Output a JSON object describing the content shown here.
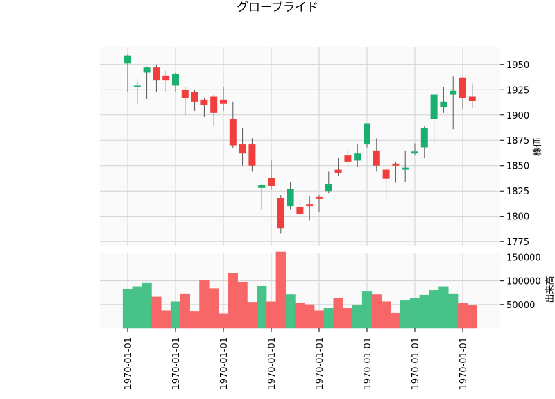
{
  "chart_data": {
    "type": "candlestick",
    "title": "グローブライド",
    "colors": {
      "up": "#1aae6f",
      "down": "#f23d3d",
      "up_volume": "#47c38a",
      "down_volume": "#f76767",
      "panel_bg": "#fafafa",
      "grid": "#d0d0d0"
    },
    "price_panel": {
      "ylabel": "株価",
      "ylim": [
        1771,
        1967
      ],
      "yticks": [
        1775,
        1800,
        1825,
        1850,
        1875,
        1900,
        1925,
        1950
      ],
      "ytick_labels": [
        "1775",
        "1800",
        "1825",
        "1850",
        "1875",
        "1900",
        "1925",
        "1950"
      ]
    },
    "volume_panel": {
      "ylabel": "出来高",
      "ylim": [
        0,
        158000
      ],
      "yticks": [
        50000,
        100000,
        150000
      ],
      "ytick_labels": [
        "50000",
        "100000",
        "150000"
      ]
    },
    "xtick_labels": [
      "1970-01-01",
      "1970-01-01",
      "1970-01-01",
      "1970-01-01",
      "1970-01-01",
      "1970-01-01",
      "1970-01-01",
      "1970-01-01"
    ],
    "candles": [
      {
        "o": 1951,
        "h": 1960,
        "l": 1923,
        "c": 1959,
        "v": 82000
      },
      {
        "o": 1929,
        "h": 1933,
        "l": 1911,
        "c": 1929,
        "v": 88000
      },
      {
        "o": 1942,
        "h": 1948,
        "l": 1916,
        "c": 1947,
        "v": 95000
      },
      {
        "o": 1947,
        "h": 1950,
        "l": 1923,
        "c": 1934,
        "v": 66000
      },
      {
        "o": 1939,
        "h": 1944,
        "l": 1923,
        "c": 1934,
        "v": 37000
      },
      {
        "o": 1929,
        "h": 1942,
        "l": 1923,
        "c": 1941,
        "v": 56000
      },
      {
        "o": 1925,
        "h": 1928,
        "l": 1900,
        "c": 1917,
        "v": 73000
      },
      {
        "o": 1923,
        "h": 1925,
        "l": 1904,
        "c": 1913,
        "v": 36000
      },
      {
        "o": 1915,
        "h": 1917,
        "l": 1898,
        "c": 1910,
        "v": 101000
      },
      {
        "o": 1918,
        "h": 1920,
        "l": 1889,
        "c": 1902,
        "v": 84000
      },
      {
        "o": 1915,
        "h": 1928,
        "l": 1904,
        "c": 1911,
        "v": 31000
      },
      {
        "o": 1896,
        "h": 1913,
        "l": 1867,
        "c": 1870,
        "v": 116000
      },
      {
        "o": 1871,
        "h": 1887,
        "l": 1850,
        "c": 1862,
        "v": 97000
      },
      {
        "o": 1871,
        "h": 1877,
        "l": 1844,
        "c": 1850,
        "v": 55000
      },
      {
        "o": 1828,
        "h": 1832,
        "l": 1807,
        "c": 1831,
        "v": 89000
      },
      {
        "o": 1838,
        "h": 1856,
        "l": 1826,
        "c": 1830,
        "v": 56000
      },
      {
        "o": 1818,
        "h": 1821,
        "l": 1783,
        "c": 1788,
        "v": 161000
      },
      {
        "o": 1810,
        "h": 1834,
        "l": 1807,
        "c": 1827,
        "v": 71000
      },
      {
        "o": 1809,
        "h": 1816,
        "l": 1802,
        "c": 1802,
        "v": 53000
      },
      {
        "o": 1812,
        "h": 1820,
        "l": 1796,
        "c": 1810,
        "v": 50000
      },
      {
        "o": 1819,
        "h": 1821,
        "l": 1804,
        "c": 1817,
        "v": 37000
      },
      {
        "o": 1825,
        "h": 1844,
        "l": 1823,
        "c": 1832,
        "v": 42000
      },
      {
        "o": 1846,
        "h": 1858,
        "l": 1840,
        "c": 1843,
        "v": 63000
      },
      {
        "o": 1860,
        "h": 1866,
        "l": 1852,
        "c": 1854,
        "v": 42000
      },
      {
        "o": 1855,
        "h": 1871,
        "l": 1849,
        "c": 1862,
        "v": 49000
      },
      {
        "o": 1871,
        "h": 1892,
        "l": 1868,
        "c": 1892,
        "v": 77000
      },
      {
        "o": 1865,
        "h": 1877,
        "l": 1844,
        "c": 1850,
        "v": 71000
      },
      {
        "o": 1846,
        "h": 1848,
        "l": 1816,
        "c": 1837,
        "v": 56000
      },
      {
        "o": 1852,
        "h": 1854,
        "l": 1833,
        "c": 1850,
        "v": 32000
      },
      {
        "o": 1846,
        "h": 1865,
        "l": 1834,
        "c": 1848,
        "v": 58000
      },
      {
        "o": 1862,
        "h": 1872,
        "l": 1860,
        "c": 1864,
        "v": 63000
      },
      {
        "o": 1868,
        "h": 1889,
        "l": 1858,
        "c": 1887,
        "v": 70000
      },
      {
        "o": 1896,
        "h": 1920,
        "l": 1872,
        "c": 1920,
        "v": 80000
      },
      {
        "o": 1908,
        "h": 1928,
        "l": 1902,
        "c": 1913,
        "v": 88000
      },
      {
        "o": 1920,
        "h": 1938,
        "l": 1886,
        "c": 1924,
        "v": 73000
      },
      {
        "o": 1937,
        "h": 1938,
        "l": 1906,
        "c": 1917,
        "v": 53000
      },
      {
        "o": 1918,
        "h": 1931,
        "l": 1907,
        "c": 1914,
        "v": 49000
      }
    ]
  }
}
